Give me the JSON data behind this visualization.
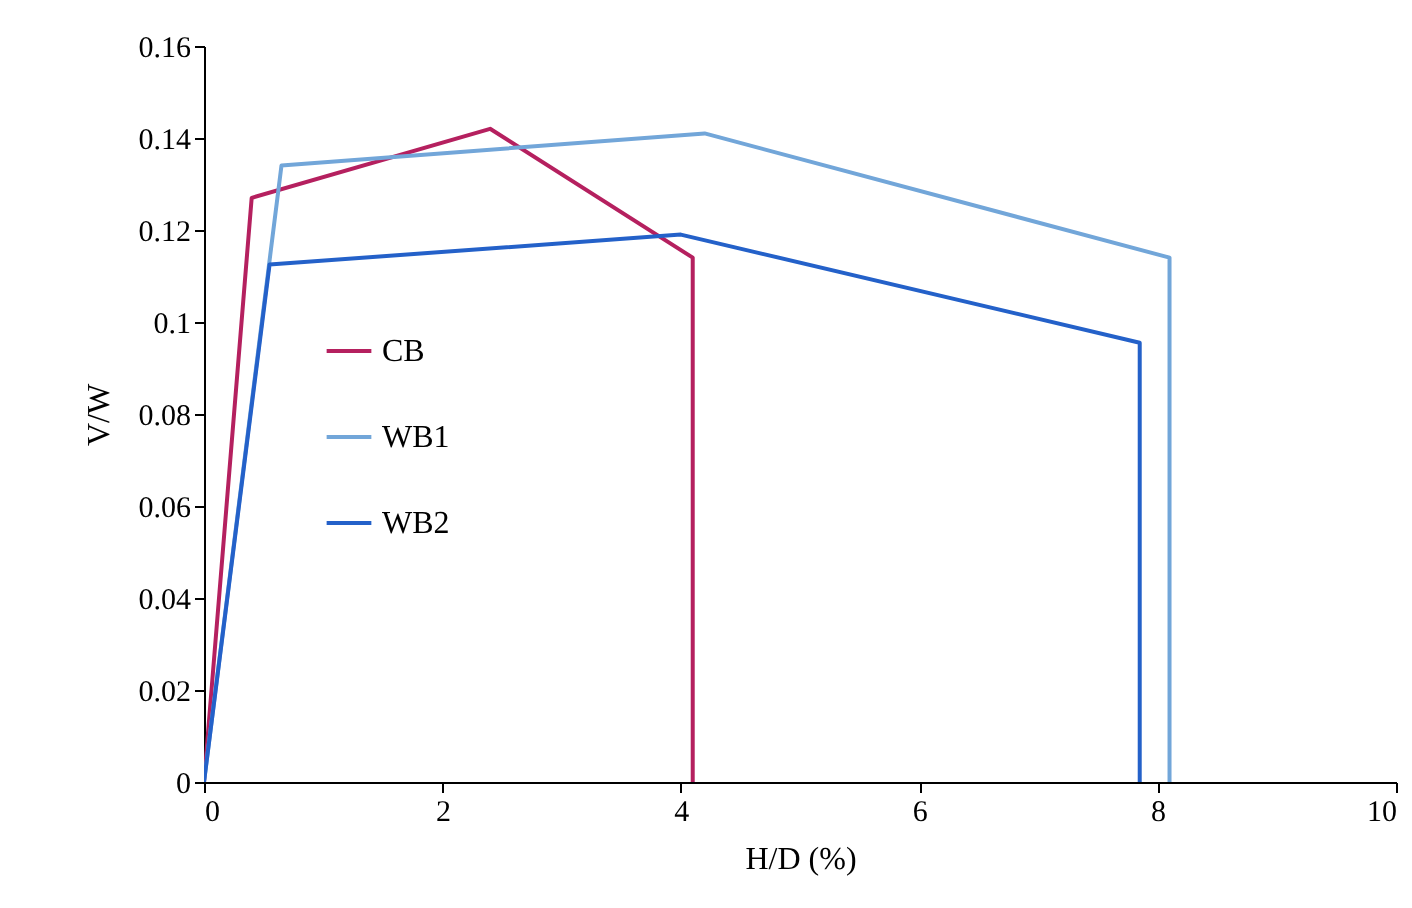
{
  "chart_data": {
    "type": "line",
    "xlabel": "H/D (%)",
    "ylabel": "V/W",
    "xlim": [
      0,
      10
    ],
    "xticks": [
      0,
      2,
      4,
      6,
      8,
      10
    ],
    "ylim": [
      0,
      0.16
    ],
    "yticks": [
      0,
      0.02,
      0.04,
      0.06,
      0.08,
      0.1,
      0.12,
      0.14,
      0.16
    ],
    "grid": false,
    "legend": "left",
    "marker": "none",
    "line_style": "solid",
    "series": [
      {
        "name": "CB",
        "color": "#b5205f",
        "x": [
          0,
          0.4,
          2.4,
          4.1,
          4.1
        ],
        "values": [
          0,
          0.127,
          0.142,
          0.114,
          0
        ]
      },
      {
        "name": "WB1",
        "color": "#72a6d9",
        "x": [
          0,
          0.65,
          4.2,
          8.1,
          8.1
        ],
        "values": [
          0,
          0.134,
          0.141,
          0.114,
          0
        ]
      },
      {
        "name": "WB2",
        "color": "#2461c9",
        "x": [
          0,
          0.55,
          4.0,
          7.85,
          7.85
        ],
        "values": [
          0,
          0.1125,
          0.119,
          0.0955,
          0
        ]
      }
    ]
  }
}
